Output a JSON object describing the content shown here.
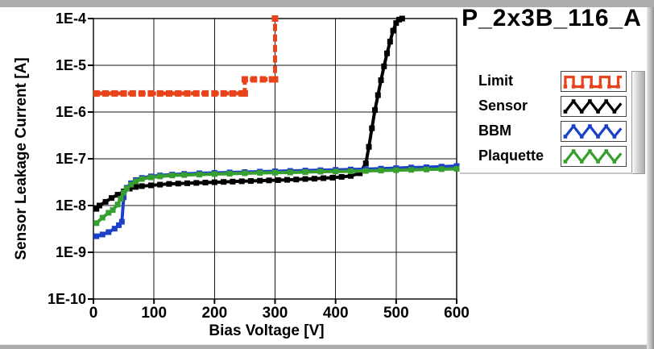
{
  "window": {
    "frame_color": "#acacac",
    "background": "#ffffff"
  },
  "chart_data": {
    "type": "line",
    "title": "P_2x3B_116_A",
    "xlabel": "Bias Voltage [V]",
    "ylabel": "Sensor Leakage Current [A]",
    "grid": true,
    "x_axis": {
      "min": 0,
      "max": 600,
      "ticks": [
        0,
        100,
        200,
        300,
        400,
        500,
        600
      ]
    },
    "y_axis": {
      "scale": "log",
      "max": 0.0001,
      "min": 1e-10,
      "ticks": [
        {
          "label": "1E-4",
          "exp": -4
        },
        {
          "label": "1E-5",
          "exp": -5
        },
        {
          "label": "1E-6",
          "exp": -6
        },
        {
          "label": "1E-7",
          "exp": -7
        },
        {
          "label": "1E-8",
          "exp": -8
        },
        {
          "label": "1E-9",
          "exp": -9
        },
        {
          "label": "1E-10",
          "exp": -10
        }
      ]
    },
    "legend": {
      "position": "right"
    },
    "series": [
      {
        "name": "Limit",
        "color": "#e8431a",
        "icon": "square-wave",
        "line_width": 5,
        "marker_size": 8,
        "dash": "9 4",
        "points": [
          [
            5,
            2.5e-06
          ],
          [
            20,
            2.5e-06
          ],
          [
            35,
            2.5e-06
          ],
          [
            50,
            2.5e-06
          ],
          [
            65,
            2.5e-06
          ],
          [
            80,
            2.5e-06
          ],
          [
            95,
            2.5e-06
          ],
          [
            110,
            2.5e-06
          ],
          [
            125,
            2.5e-06
          ],
          [
            140,
            2.5e-06
          ],
          [
            155,
            2.5e-06
          ],
          [
            170,
            2.5e-06
          ],
          [
            185,
            2.5e-06
          ],
          [
            200,
            2.5e-06
          ],
          [
            215,
            2.5e-06
          ],
          [
            230,
            2.5e-06
          ],
          [
            245,
            2.5e-06
          ],
          [
            250,
            2.5e-06
          ],
          [
            250,
            5e-06
          ],
          [
            265,
            5e-06
          ],
          [
            280,
            5e-06
          ],
          [
            295,
            5e-06
          ],
          [
            300,
            5e-06
          ],
          [
            300,
            0.0001
          ]
        ]
      },
      {
        "name": "Sensor",
        "color": "#000000",
        "icon": "triangle-wave",
        "line_width": 4,
        "marker_size": 7,
        "dash": "",
        "points": [
          [
            5,
            8.5e-09
          ],
          [
            10,
            1e-08
          ],
          [
            20,
            1.2e-08
          ],
          [
            30,
            1.45e-08
          ],
          [
            40,
            1.7e-08
          ],
          [
            50,
            2e-08
          ],
          [
            60,
            2.3e-08
          ],
          [
            70,
            2.5e-08
          ],
          [
            80,
            2.6e-08
          ],
          [
            95,
            2.7e-08
          ],
          [
            110,
            2.8e-08
          ],
          [
            125,
            2.9e-08
          ],
          [
            140,
            2.95e-08
          ],
          [
            155,
            3e-08
          ],
          [
            170,
            3.05e-08
          ],
          [
            185,
            3.1e-08
          ],
          [
            200,
            3.15e-08
          ],
          [
            215,
            3.2e-08
          ],
          [
            230,
            3.25e-08
          ],
          [
            245,
            3.3e-08
          ],
          [
            260,
            3.35e-08
          ],
          [
            275,
            3.4e-08
          ],
          [
            290,
            3.45e-08
          ],
          [
            305,
            3.5e-08
          ],
          [
            320,
            3.55e-08
          ],
          [
            335,
            3.6e-08
          ],
          [
            350,
            3.7e-08
          ],
          [
            365,
            3.75e-08
          ],
          [
            380,
            3.85e-08
          ],
          [
            395,
            3.95e-08
          ],
          [
            410,
            4.1e-08
          ],
          [
            425,
            4.3e-08
          ],
          [
            440,
            4.9e-08
          ],
          [
            450,
            8e-08
          ],
          [
            455,
            1.8e-07
          ],
          [
            460,
            4.5e-07
          ],
          [
            465,
            1.1e-06
          ],
          [
            470,
            2.3e-06
          ],
          [
            475,
            4.8e-06
          ],
          [
            480,
            9.5e-06
          ],
          [
            485,
            1.8e-05
          ],
          [
            490,
            3.2e-05
          ],
          [
            495,
            5.5e-05
          ],
          [
            500,
            8e-05
          ],
          [
            505,
            9.5e-05
          ],
          [
            510,
            0.0001
          ]
        ]
      },
      {
        "name": "BBM",
        "color": "#1b41c8",
        "icon": "triangle-wave",
        "line_width": 4,
        "marker_size": 7,
        "dash": "",
        "points": [
          [
            5,
            2.2e-09
          ],
          [
            15,
            2.4e-09
          ],
          [
            25,
            2.7e-09
          ],
          [
            35,
            3.2e-09
          ],
          [
            42,
            3.8e-09
          ],
          [
            47,
            4.5e-09
          ],
          [
            50,
            1.5e-08
          ],
          [
            55,
            2.4e-08
          ],
          [
            62,
            3e-08
          ],
          [
            70,
            3.5e-08
          ],
          [
            80,
            3.9e-08
          ],
          [
            95,
            4.2e-08
          ],
          [
            110,
            4.4e-08
          ],
          [
            130,
            4.6e-08
          ],
          [
            150,
            4.75e-08
          ],
          [
            175,
            4.9e-08
          ],
          [
            200,
            5e-08
          ],
          [
            225,
            5.1e-08
          ],
          [
            250,
            5.2e-08
          ],
          [
            275,
            5.3e-08
          ],
          [
            300,
            5.4e-08
          ],
          [
            325,
            5.5e-08
          ],
          [
            350,
            5.6e-08
          ],
          [
            375,
            5.7e-08
          ],
          [
            400,
            5.8e-08
          ],
          [
            425,
            5.9e-08
          ],
          [
            450,
            6e-08
          ],
          [
            475,
            6.15e-08
          ],
          [
            500,
            6.3e-08
          ],
          [
            525,
            6.5e-08
          ],
          [
            550,
            6.6e-08
          ],
          [
            575,
            6.8e-08
          ],
          [
            600,
            7e-08
          ]
        ]
      },
      {
        "name": "Plaquette",
        "color": "#379f2f",
        "icon": "triangle-wave",
        "line_width": 4,
        "marker_size": 7,
        "dash": "",
        "points": [
          [
            5,
            4.2e-09
          ],
          [
            15,
            5.5e-09
          ],
          [
            25,
            7e-09
          ],
          [
            32,
            8e-09
          ],
          [
            40,
            1.05e-08
          ],
          [
            45,
            1.4e-08
          ],
          [
            50,
            1.9e-08
          ],
          [
            55,
            2.3e-08
          ],
          [
            62,
            2.8e-08
          ],
          [
            70,
            3.3e-08
          ],
          [
            80,
            3.7e-08
          ],
          [
            95,
            4e-08
          ],
          [
            110,
            4.2e-08
          ],
          [
            130,
            4.4e-08
          ],
          [
            150,
            4.5e-08
          ],
          [
            175,
            4.6e-08
          ],
          [
            200,
            4.7e-08
          ],
          [
            225,
            4.8e-08
          ],
          [
            250,
            4.9e-08
          ],
          [
            275,
            5e-08
          ],
          [
            300,
            5.05e-08
          ],
          [
            325,
            5.1e-08
          ],
          [
            350,
            5.2e-08
          ],
          [
            375,
            5.3e-08
          ],
          [
            400,
            5.35e-08
          ],
          [
            425,
            5.4e-08
          ],
          [
            450,
            5.5e-08
          ],
          [
            475,
            5.6e-08
          ],
          [
            500,
            5.7e-08
          ],
          [
            525,
            5.8e-08
          ],
          [
            550,
            5.9e-08
          ],
          [
            575,
            6e-08
          ],
          [
            600,
            6.1e-08
          ]
        ]
      }
    ]
  }
}
